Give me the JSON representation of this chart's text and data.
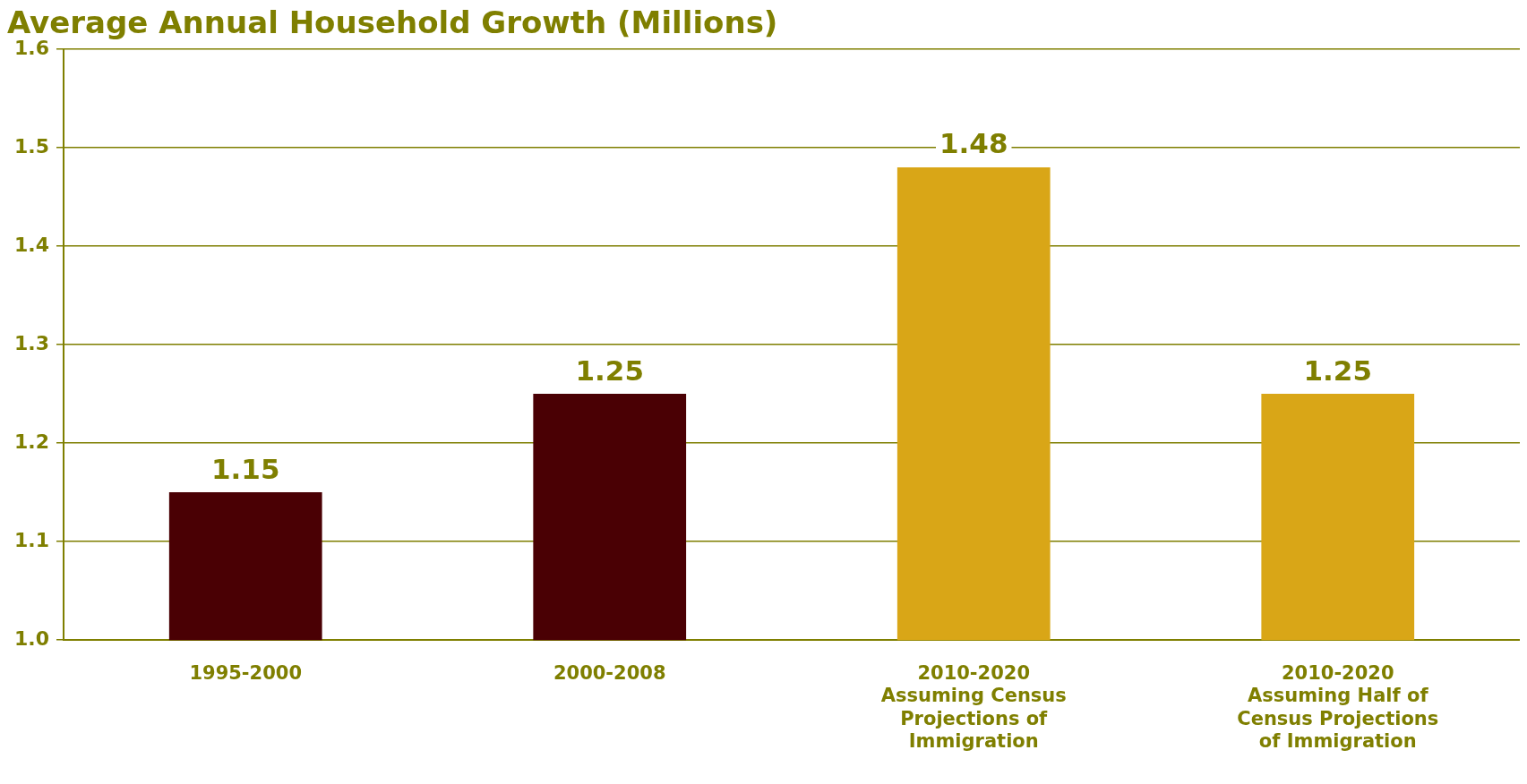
{
  "chart_data": {
    "type": "bar",
    "title": "Average Annual Household Growth (Millions)",
    "categories": [
      "1995-2000",
      "2000-2008",
      "2010-2020\nAssuming Census Projections of Immigration",
      "2010-2020\nAssuming Half of Census Projections of Immigration"
    ],
    "values": [
      1.15,
      1.25,
      1.48,
      1.25
    ],
    "colors": [
      "#4a0004",
      "#4a0004",
      "#d9a617",
      "#d9a617"
    ],
    "ylim": [
      1.0,
      1.6
    ],
    "yticks": [
      {
        "value": 1.0,
        "label": "1.0"
      },
      {
        "value": 1.1,
        "label": "1.1"
      },
      {
        "value": 1.2,
        "label": "1.2"
      },
      {
        "value": 1.3,
        "label": "1.3"
      },
      {
        "value": 1.4,
        "label": "1.4"
      },
      {
        "value": 1.5,
        "label": "1.5"
      },
      {
        "value": 1.6,
        "label": "1.6"
      }
    ],
    "grid": "y",
    "data_labels": true,
    "legend": false
  }
}
